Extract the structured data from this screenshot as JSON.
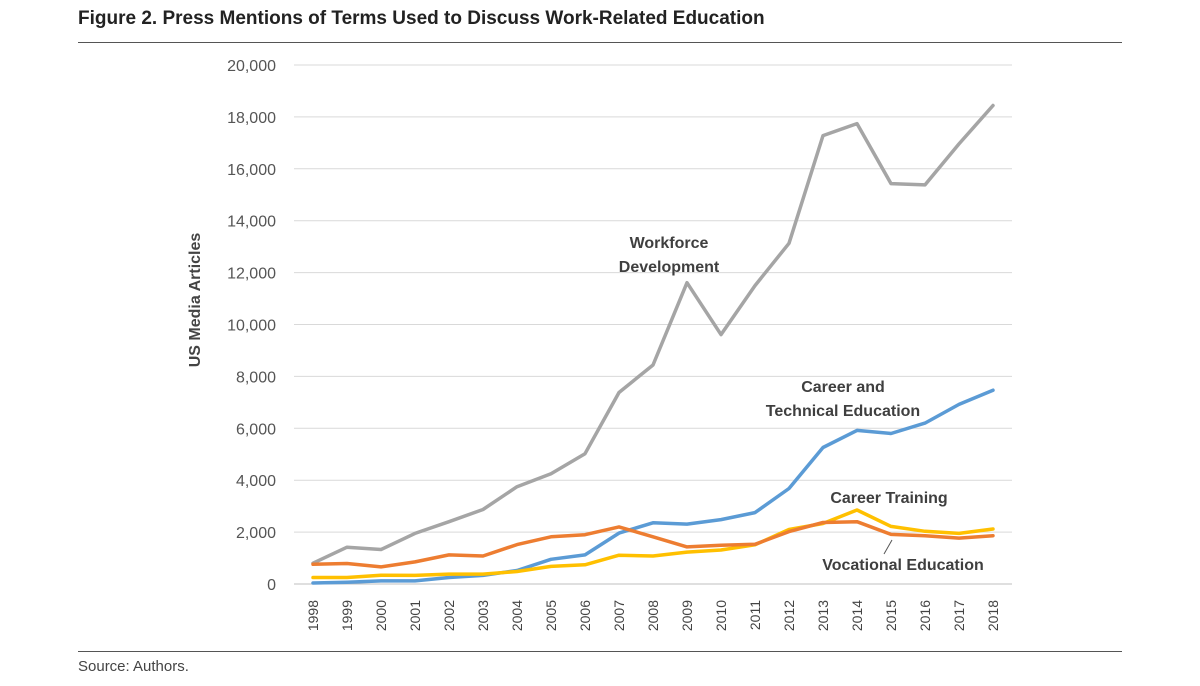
{
  "figure": {
    "title": "Figure 2. Press Mentions of Terms Used to Discuss Work-Related Education",
    "source": "Source: Authors."
  },
  "chart_data": {
    "type": "line",
    "title": "Figure 2. Press Mentions of Terms Used to Discuss Work-Related Education",
    "xlabel": "",
    "ylabel": "US Media Articles",
    "ylim": [
      0,
      20000
    ],
    "yticks": [
      0,
      2000,
      4000,
      6000,
      8000,
      10000,
      12000,
      14000,
      16000,
      18000,
      20000
    ],
    "ytick_labels": [
      "0",
      "2,000",
      "4,000",
      "6,000",
      "8,000",
      "10,000",
      "12,000",
      "14,000",
      "16,000",
      "18,000",
      "20,000"
    ],
    "grid": true,
    "legend": "none (direct labels)",
    "x": [
      "1998",
      "1999",
      "2000",
      "2001",
      "2002",
      "2003",
      "2004",
      "2005",
      "2006",
      "2007",
      "2008",
      "2009",
      "2010",
      "2011",
      "2012",
      "2013",
      "2014",
      "2015",
      "2016",
      "2017",
      "2018"
    ],
    "series": [
      {
        "name": "Workforce Development",
        "label_lines": [
          "Workforce",
          "Development"
        ],
        "color": "#a5a5a5",
        "values": [
          800,
          1420,
          1330,
          1950,
          2400,
          2870,
          3750,
          4250,
          5020,
          7380,
          8440,
          11610,
          9610,
          11500,
          13130,
          17280,
          17740,
          15430,
          15380,
          16960,
          18440
        ]
      },
      {
        "name": "Career and Technical Education",
        "label_lines": [
          "Career and",
          "Technical Education"
        ],
        "color": "#5b9bd5",
        "values": [
          40,
          70,
          120,
          120,
          250,
          330,
          520,
          950,
          1120,
          1960,
          2360,
          2310,
          2480,
          2750,
          3680,
          5260,
          5920,
          5800,
          6200,
          6920,
          7470
        ]
      },
      {
        "name": "Career Training",
        "label_lines": [
          "Career Training"
        ],
        "color": "#ffc000",
        "values": [
          250,
          250,
          340,
          330,
          380,
          380,
          480,
          680,
          740,
          1110,
          1080,
          1230,
          1310,
          1510,
          2100,
          2330,
          2850,
          2220,
          2030,
          1950,
          2120
        ]
      },
      {
        "name": "Vocational Education",
        "label_lines": [
          "Vocational Education"
        ],
        "color": "#ed7d31",
        "values": [
          760,
          790,
          660,
          850,
          1120,
          1080,
          1520,
          1820,
          1900,
          2200,
          1820,
          1430,
          1490,
          1530,
          2020,
          2370,
          2400,
          1910,
          1860,
          1770,
          1860
        ]
      }
    ]
  }
}
